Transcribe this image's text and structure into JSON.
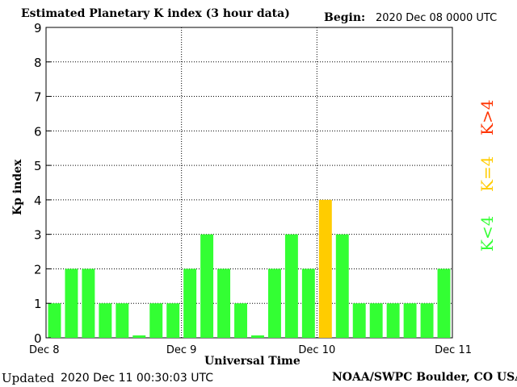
{
  "header": {
    "title": "Estimated Planetary K index (3 hour data)",
    "begin_label": "Begin:",
    "begin_value": "2020 Dec 08 0000 UTC"
  },
  "footer": {
    "updated_label": "Updated",
    "updated_value": "2020 Dec 11 00:30:03 UTC",
    "credit": "NOAA/SWPC Boulder, CO USA"
  },
  "legend": [
    {
      "text": "K<4",
      "color": "#33ff33"
    },
    {
      "text": "K=4",
      "color": "#ffcc00"
    },
    {
      "text": "K>4",
      "color": "#ff3300"
    }
  ],
  "chart_data": {
    "type": "bar",
    "title": "Estimated Planetary K index (3 hour data)",
    "xlabel": "Universal Time",
    "ylabel": "Kp index",
    "ylim": [
      0,
      9
    ],
    "yticks": [
      "0",
      "1",
      "2",
      "3",
      "4",
      "5",
      "6",
      "7",
      "8",
      "9"
    ],
    "xtick_labels": [
      "Dec 8",
      "Dec 9",
      "Dec 10",
      "Dec 11"
    ],
    "values": [
      1,
      2,
      2,
      1,
      1,
      0.07,
      1,
      1,
      2,
      3,
      2,
      1,
      0.07,
      2,
      3,
      2,
      4,
      3,
      1,
      1,
      1,
      1,
      1,
      2
    ],
    "grid": true,
    "colors": {
      "low": "#33ff33",
      "equal": "#ffcc00",
      "high": "#ff3300"
    }
  }
}
